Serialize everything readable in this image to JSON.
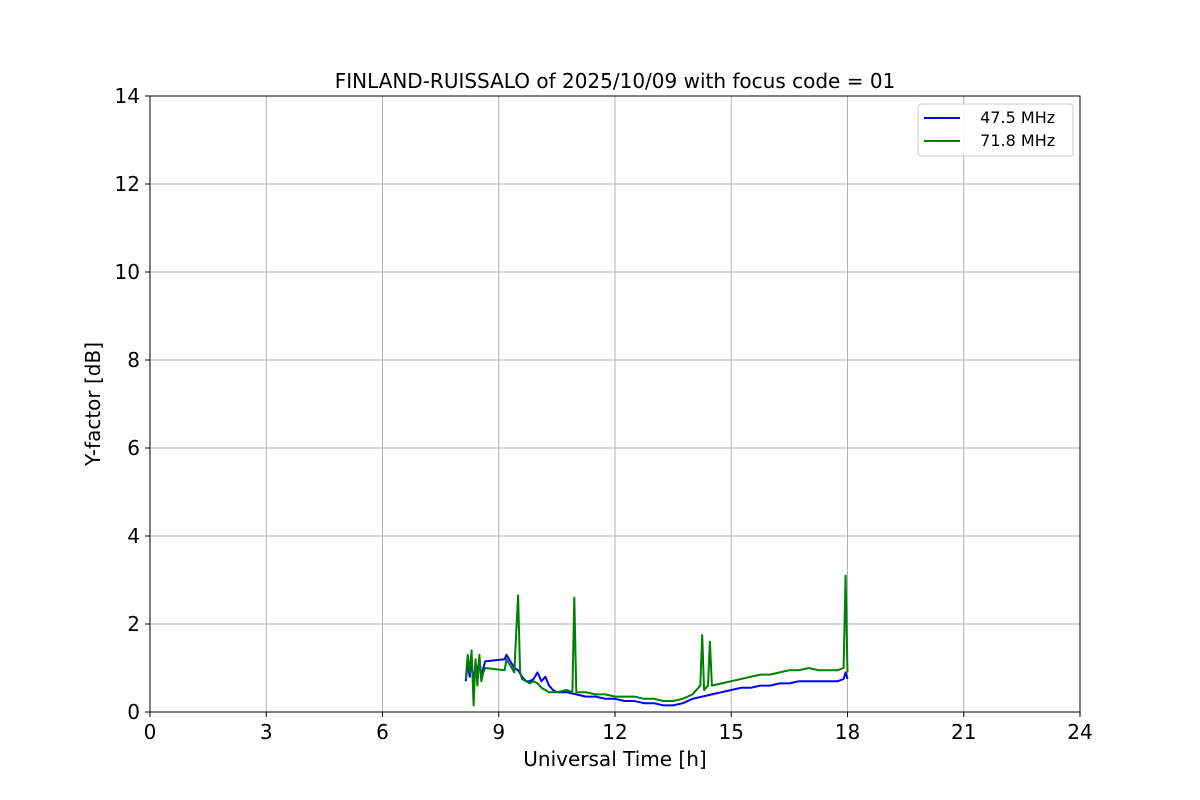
{
  "chart_data": {
    "type": "line",
    "title": "FINLAND-RUISSALO of 2025/10/09 with focus code = 01",
    "xlabel": "Universal Time [h]",
    "ylabel": "Y-factor [dB]",
    "xlim": [
      0,
      24
    ],
    "ylim": [
      0,
      14
    ],
    "xticks": [
      0,
      3,
      6,
      9,
      12,
      15,
      18,
      21,
      24
    ],
    "yticks": [
      0,
      2,
      4,
      6,
      8,
      10,
      12,
      14
    ],
    "grid": true,
    "legend_position": "top-right",
    "series": [
      {
        "name": "  47.5 MHz",
        "color": "#0000ff",
        "x": [
          8.15,
          8.2,
          8.25,
          8.3,
          8.35,
          8.4,
          8.45,
          8.5,
          8.55,
          8.6,
          8.65,
          9.15,
          9.2,
          9.3,
          9.4,
          9.5,
          9.6,
          9.7,
          9.8,
          9.9,
          10.0,
          10.1,
          10.2,
          10.3,
          10.4,
          10.5,
          10.75,
          11.0,
          11.25,
          11.5,
          11.75,
          12.0,
          12.25,
          12.5,
          12.75,
          13.0,
          13.25,
          13.5,
          13.75,
          14.0,
          14.25,
          14.5,
          14.75,
          15.0,
          15.25,
          15.5,
          15.75,
          16.0,
          16.25,
          16.5,
          16.75,
          17.0,
          17.25,
          17.5,
          17.75,
          17.9,
          17.95,
          18.0
        ],
        "y": [
          0.7,
          1.1,
          0.8,
          1.2,
          0.6,
          1.1,
          0.9,
          1.2,
          0.8,
          1.0,
          1.15,
          1.2,
          1.3,
          1.15,
          1.0,
          0.95,
          0.8,
          0.7,
          0.7,
          0.75,
          0.9,
          0.7,
          0.8,
          0.6,
          0.5,
          0.45,
          0.45,
          0.4,
          0.35,
          0.35,
          0.3,
          0.3,
          0.25,
          0.25,
          0.2,
          0.2,
          0.15,
          0.15,
          0.2,
          0.3,
          0.35,
          0.4,
          0.45,
          0.5,
          0.55,
          0.55,
          0.6,
          0.6,
          0.65,
          0.65,
          0.7,
          0.7,
          0.7,
          0.7,
          0.7,
          0.75,
          0.9,
          0.75
        ]
      },
      {
        "name": "  71.8 MHz",
        "color": "#008000",
        "x": [
          8.15,
          8.2,
          8.25,
          8.3,
          8.35,
          8.4,
          8.45,
          8.5,
          8.55,
          8.6,
          8.65,
          9.15,
          9.2,
          9.3,
          9.4,
          9.45,
          9.5,
          9.55,
          9.6,
          9.7,
          9.8,
          9.9,
          10.0,
          10.1,
          10.2,
          10.3,
          10.5,
          10.75,
          10.9,
          10.95,
          11.0,
          11.25,
          11.5,
          11.75,
          12.0,
          12.25,
          12.5,
          12.75,
          13.0,
          13.25,
          13.5,
          13.75,
          14.0,
          14.2,
          14.25,
          14.3,
          14.4,
          14.45,
          14.5,
          14.75,
          15.0,
          15.25,
          15.5,
          15.75,
          16.0,
          16.25,
          16.5,
          16.75,
          17.0,
          17.25,
          17.5,
          17.75,
          17.9,
          17.95,
          18.0
        ],
        "y": [
          0.75,
          1.3,
          0.9,
          1.4,
          0.15,
          1.2,
          0.6,
          1.3,
          0.7,
          0.9,
          1.0,
          0.95,
          1.2,
          1.05,
          0.9,
          1.8,
          2.65,
          0.9,
          0.75,
          0.7,
          0.65,
          0.7,
          0.65,
          0.55,
          0.5,
          0.45,
          0.45,
          0.5,
          0.45,
          2.6,
          0.45,
          0.45,
          0.4,
          0.4,
          0.35,
          0.35,
          0.35,
          0.3,
          0.3,
          0.25,
          0.25,
          0.3,
          0.4,
          0.6,
          1.75,
          0.5,
          0.6,
          1.6,
          0.6,
          0.65,
          0.7,
          0.75,
          0.8,
          0.85,
          0.85,
          0.9,
          0.95,
          0.95,
          1.0,
          0.95,
          0.95,
          0.95,
          1.0,
          3.1,
          0.9
        ]
      }
    ]
  }
}
